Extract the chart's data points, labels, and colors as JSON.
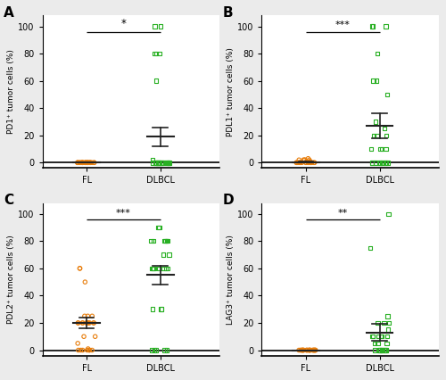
{
  "panels": [
    {
      "label": "A",
      "ylabel": "PD1⁺ tumor cells (%)",
      "significance": "*",
      "fl_data": [
        0,
        0,
        0,
        0,
        0,
        0,
        0,
        0,
        0,
        0,
        0,
        0,
        0,
        0,
        0,
        0,
        0,
        0,
        0,
        0,
        0,
        0,
        0,
        0,
        0,
        0,
        0
      ],
      "dlbcl_data": [
        0,
        0,
        0,
        0,
        0,
        0,
        0,
        0,
        0,
        0,
        0,
        0,
        0,
        0,
        0,
        0,
        0,
        0,
        0,
        0,
        60,
        80,
        80,
        80,
        100,
        100,
        2
      ],
      "fl_mean": 0,
      "fl_sem": 0,
      "dlbcl_mean": 19,
      "dlbcl_sem": 7
    },
    {
      "label": "B",
      "ylabel": "PDL1⁺ tumor cells (%)",
      "significance": "***",
      "fl_data": [
        0,
        0,
        0,
        0,
        0,
        0,
        0,
        0,
        0,
        0,
        0,
        0,
        0,
        0,
        0,
        0,
        0,
        0,
        0,
        1,
        1,
        2,
        2,
        2,
        2,
        2,
        3
      ],
      "dlbcl_data": [
        0,
        0,
        0,
        0,
        0,
        0,
        0,
        0,
        0,
        0,
        0,
        10,
        10,
        10,
        10,
        20,
        20,
        20,
        25,
        30,
        50,
        60,
        60,
        80,
        100,
        100,
        100
      ],
      "fl_mean": 0.5,
      "fl_sem": 0.5,
      "dlbcl_mean": 27,
      "dlbcl_sem": 9
    },
    {
      "label": "C",
      "ylabel": "PDL2⁺ tumor cells (%)",
      "significance": "***",
      "fl_data": [
        0,
        0,
        0,
        0,
        0,
        0,
        0,
        1,
        5,
        10,
        10,
        20,
        20,
        20,
        20,
        20,
        20,
        20,
        20,
        20,
        20,
        25,
        25,
        25,
        50,
        60,
        60
      ],
      "dlbcl_data": [
        0,
        0,
        0,
        0,
        0,
        30,
        30,
        30,
        60,
        60,
        60,
        60,
        60,
        60,
        60,
        70,
        70,
        80,
        80,
        80,
        80,
        80,
        80,
        80,
        80,
        90,
        90
      ],
      "fl_mean": 20,
      "fl_sem": 4,
      "dlbcl_mean": 55,
      "dlbcl_sem": 7
    },
    {
      "label": "D",
      "ylabel": "LAG3⁺ tumor cells (%)",
      "significance": "**",
      "fl_data": [
        0,
        0,
        0,
        0,
        0,
        0,
        0,
        0,
        0,
        0,
        0,
        0,
        0,
        0,
        0,
        0,
        0,
        0,
        0,
        0,
        0,
        0,
        0,
        0,
        0,
        0,
        0
      ],
      "dlbcl_data": [
        0,
        0,
        0,
        0,
        0,
        0,
        0,
        0,
        0,
        0,
        0,
        5,
        5,
        5,
        10,
        10,
        10,
        10,
        10,
        15,
        20,
        20,
        20,
        25,
        75,
        100,
        10
      ],
      "fl_mean": 0,
      "fl_sem": 0,
      "dlbcl_mean": 13,
      "dlbcl_sem": 6
    }
  ],
  "fl_color": "#E87E0D",
  "dlbcl_color": "#29B024",
  "fig_bg": "#EBEBEB",
  "panel_bg": "#FFFFFF",
  "yticks": [
    0,
    20,
    40,
    60,
    80,
    100
  ],
  "ylim": [
    -4,
    108
  ],
  "xlim": [
    0.4,
    2.8
  ],
  "xtick_pos": [
    1,
    2
  ],
  "xtick_labels": [
    "FL",
    "DLBCL"
  ]
}
